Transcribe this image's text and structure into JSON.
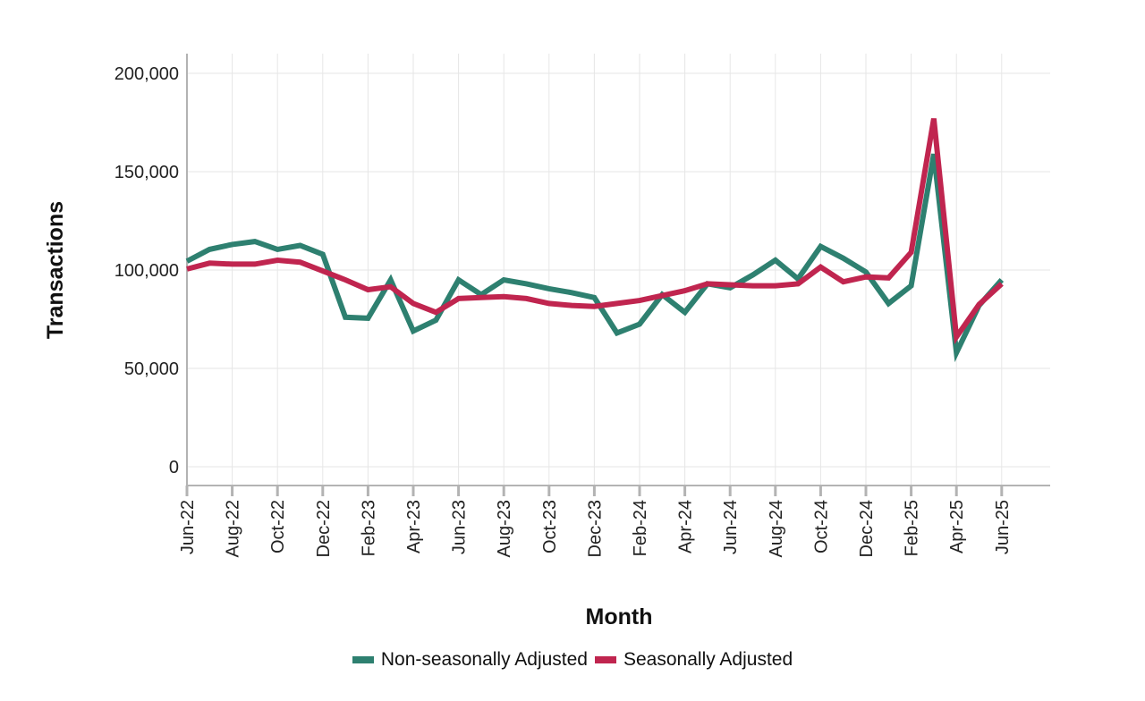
{
  "chart_data": {
    "type": "line",
    "title": "",
    "xlabel": "Month",
    "ylabel": "Transactions",
    "ylim": [
      -10000,
      210000
    ],
    "yticks": [
      0,
      50000,
      100000,
      150000,
      200000
    ],
    "ytick_labels": [
      "0",
      "50,000",
      "100,000",
      "150,000",
      "200,000"
    ],
    "grid": true,
    "legend_position": "bottom",
    "x": [
      "Jun-22",
      "Jul-22",
      "Aug-22",
      "Sep-22",
      "Oct-22",
      "Nov-22",
      "Dec-22",
      "Jan-23",
      "Feb-23",
      "Mar-23",
      "Apr-23",
      "May-23",
      "Jun-23",
      "Jul-23",
      "Aug-23",
      "Sep-23",
      "Oct-23",
      "Nov-23",
      "Dec-23",
      "Jan-24",
      "Feb-24",
      "Mar-24",
      "Apr-24",
      "May-24",
      "Jun-24",
      "Jul-24",
      "Aug-24",
      "Sep-24",
      "Oct-24",
      "Nov-24",
      "Dec-24",
      "Jan-25",
      "Feb-25",
      "Mar-25",
      "Apr-25",
      "May-25",
      "Jun-25"
    ],
    "xtick_labels": [
      "Jun-22",
      "Aug-22",
      "Oct-22",
      "Dec-22",
      "Feb-23",
      "Apr-23",
      "Jun-23",
      "Aug-23",
      "Oct-23",
      "Dec-23",
      "Feb-24",
      "Apr-24",
      "Jun-24",
      "Aug-24",
      "Oct-24",
      "Dec-24",
      "Feb-25",
      "Apr-25",
      "Jun-25"
    ],
    "series": [
      {
        "name": "Non-seasonally Adjusted",
        "color": "#2e8070",
        "values": [
          104500,
          110500,
          113000,
          114500,
          110500,
          112500,
          108000,
          76000,
          75500,
          95000,
          69000,
          74500,
          95000,
          87500,
          95000,
          93000,
          90500,
          88500,
          86000,
          68000,
          72500,
          87500,
          78500,
          93000,
          91000,
          97500,
          105000,
          95500,
          112000,
          106000,
          99000,
          83000,
          92000,
          159000,
          58000,
          82000,
          95000
        ]
      },
      {
        "name": "Seasonally Adjusted",
        "color": "#c0254f",
        "values": [
          100500,
          103500,
          103000,
          103000,
          105000,
          104000,
          99500,
          95000,
          90000,
          91500,
          83000,
          78500,
          85500,
          86000,
          86500,
          85500,
          83000,
          82000,
          81500,
          83000,
          84500,
          87000,
          89500,
          93000,
          92500,
          92000,
          92000,
          93000,
          101500,
          94000,
          96500,
          96000,
          109000,
          177000,
          66000,
          82500,
          93000
        ]
      }
    ]
  }
}
